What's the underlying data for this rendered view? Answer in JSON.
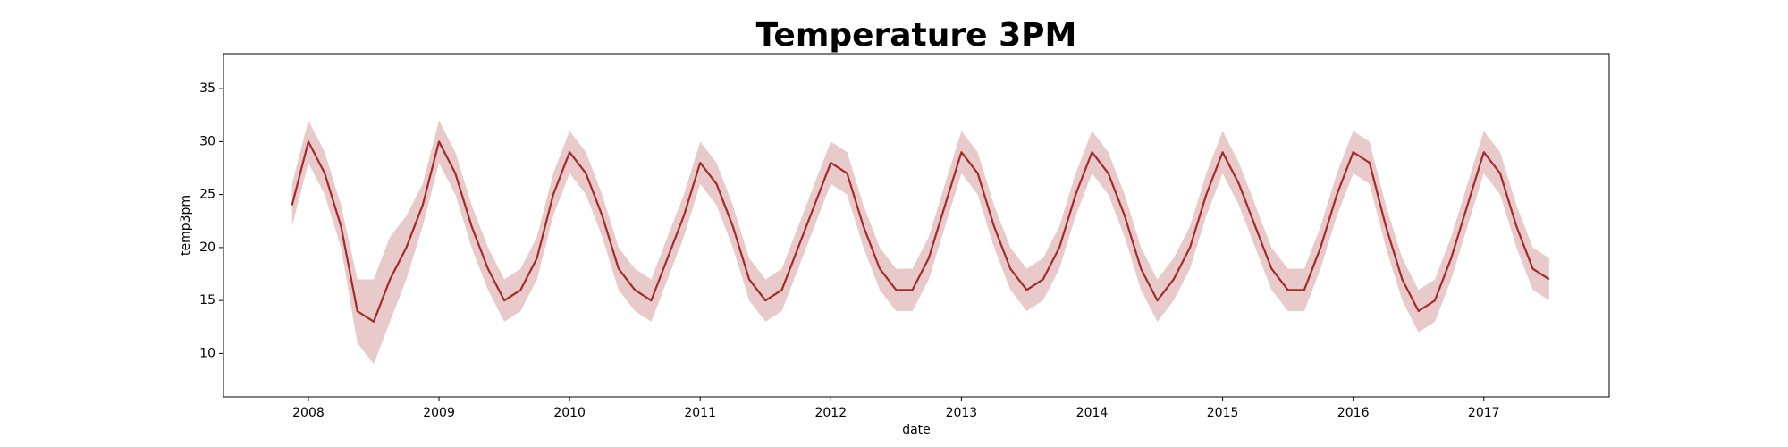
{
  "chart_data": {
    "type": "line",
    "title": "Temperature 3PM",
    "x_label": "date",
    "y_label": "temp3pm",
    "x": [
      2007.875,
      2008.0,
      2008.125,
      2008.25,
      2008.375,
      2008.5,
      2008.625,
      2008.75,
      2008.875,
      2009.0,
      2009.125,
      2009.25,
      2009.375,
      2009.5,
      2009.625,
      2009.75,
      2009.875,
      2010.0,
      2010.125,
      2010.25,
      2010.375,
      2010.5,
      2010.625,
      2010.75,
      2010.875,
      2011.0,
      2011.125,
      2011.25,
      2011.375,
      2011.5,
      2011.625,
      2011.75,
      2011.875,
      2012.0,
      2012.125,
      2012.25,
      2012.375,
      2012.5,
      2012.625,
      2012.75,
      2012.875,
      2013.0,
      2013.125,
      2013.25,
      2013.375,
      2013.5,
      2013.625,
      2013.75,
      2013.875,
      2014.0,
      2014.125,
      2014.25,
      2014.375,
      2014.5,
      2014.625,
      2014.75,
      2014.875,
      2015.0,
      2015.125,
      2015.25,
      2015.375,
      2015.5,
      2015.625,
      2015.75,
      2015.875,
      2016.0,
      2016.125,
      2016.25,
      2016.375,
      2016.5,
      2016.625,
      2016.75,
      2016.875,
      2017.0,
      2017.125,
      2017.25,
      2017.375,
      2017.5
    ],
    "series": [
      {
        "name": "temp3pm",
        "color": "#a52a2a",
        "values": [
          24,
          30,
          27,
          22,
          14,
          13,
          17,
          20,
          24,
          30,
          27,
          22,
          18,
          15,
          16,
          19,
          25,
          29,
          27,
          23,
          18,
          16,
          15,
          19,
          23,
          28,
          26,
          22,
          17,
          15,
          16,
          20,
          24,
          28,
          27,
          22,
          18,
          16,
          16,
          19,
          24,
          29,
          27,
          22,
          18,
          16,
          17,
          20,
          25,
          29,
          27,
          23,
          18,
          15,
          17,
          20,
          25,
          29,
          26,
          22,
          18,
          16,
          16,
          20,
          25,
          29,
          28,
          22,
          17,
          14,
          15,
          19,
          24,
          29,
          27,
          22,
          18,
          17
        ]
      }
    ],
    "band": {
      "color": "#a52a2a",
      "lower": [
        22,
        28,
        25,
        20,
        11,
        9,
        13,
        17,
        22,
        28,
        25,
        20,
        16,
        13,
        14,
        17,
        23,
        27,
        25,
        21,
        16,
        14,
        13,
        17,
        21,
        26,
        24,
        20,
        15,
        13,
        14,
        18,
        22,
        26,
        25,
        20,
        16,
        14,
        14,
        17,
        22,
        27,
        25,
        20,
        16,
        14,
        15,
        18,
        23,
        27,
        25,
        21,
        16,
        13,
        15,
        18,
        23,
        27,
        24,
        20,
        16,
        14,
        14,
        18,
        23,
        27,
        26,
        20,
        15,
        12,
        13,
        17,
        22,
        27,
        25,
        20,
        16,
        15
      ],
      "upper": [
        26,
        32,
        29,
        24,
        17,
        17,
        21,
        23,
        26,
        32,
        29,
        24,
        20,
        17,
        18,
        21,
        27,
        31,
        29,
        25,
        20,
        18,
        17,
        21,
        25,
        30,
        28,
        24,
        19,
        17,
        18,
        22,
        26,
        30,
        29,
        24,
        20,
        18,
        18,
        21,
        26,
        31,
        29,
        24,
        20,
        18,
        19,
        22,
        27,
        31,
        29,
        25,
        20,
        17,
        19,
        22,
        27,
        31,
        28,
        24,
        20,
        18,
        18,
        22,
        27,
        31,
        30,
        24,
        19,
        16,
        17,
        21,
        26,
        31,
        29,
        24,
        20,
        19
      ]
    },
    "xlim": [
      2007.35,
      2017.96
    ],
    "xticks": [
      2008,
      2009,
      2010,
      2011,
      2012,
      2013,
      2014,
      2015,
      2016,
      2017
    ],
    "ylim": [
      5.9,
      38.3
    ],
    "yticks": [
      10,
      15,
      20,
      25,
      30,
      35
    ],
    "grid": false
  }
}
